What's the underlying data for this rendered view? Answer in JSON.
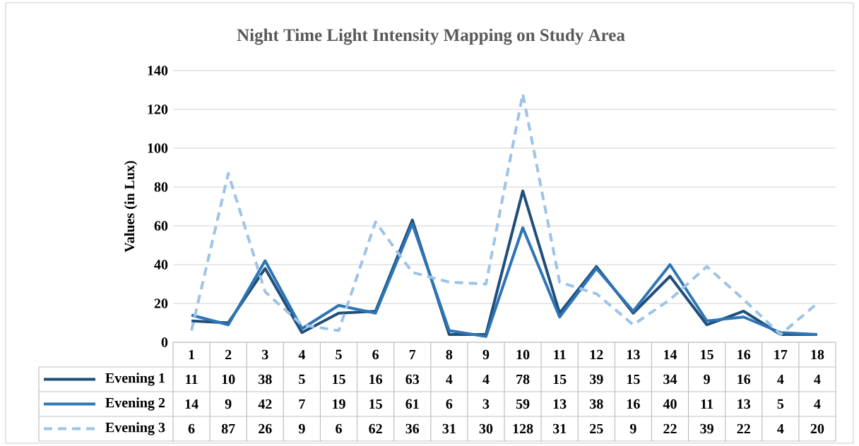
{
  "chart_data": {
    "type": "line",
    "title": "Night Time Light Intensity Mapping on Study Area",
    "ylabel": "Values (in Lux)",
    "categories": [
      "1",
      "2",
      "3",
      "4",
      "5",
      "6",
      "7",
      "8",
      "9",
      "10",
      "11",
      "12",
      "13",
      "14",
      "15",
      "16",
      "17",
      "18"
    ],
    "series": [
      {
        "name": "Evening 1",
        "color": "#1f4e79",
        "line_style": "solid",
        "values": [
          11,
          10,
          38,
          5,
          15,
          16,
          63,
          4,
          4,
          78,
          15,
          39,
          15,
          34,
          9,
          16,
          4,
          4
        ]
      },
      {
        "name": "Evening 2",
        "color": "#2e75b6",
        "line_style": "solid",
        "values": [
          14,
          9,
          42,
          7,
          19,
          15,
          61,
          6,
          3,
          59,
          13,
          38,
          16,
          40,
          11,
          13,
          5,
          4
        ]
      },
      {
        "name": "Evening 3",
        "color": "#9dc3e6",
        "line_style": "dashed",
        "values": [
          6,
          87,
          26,
          9,
          6,
          62,
          36,
          31,
          30,
          128,
          31,
          25,
          9,
          22,
          39,
          22,
          4,
          20
        ]
      }
    ],
    "ylim": [
      0,
      140
    ],
    "yticks": [
      0,
      20,
      40,
      60,
      80,
      100,
      120,
      140
    ],
    "grid": "y",
    "legend": "bottom",
    "data_labels": true
  }
}
